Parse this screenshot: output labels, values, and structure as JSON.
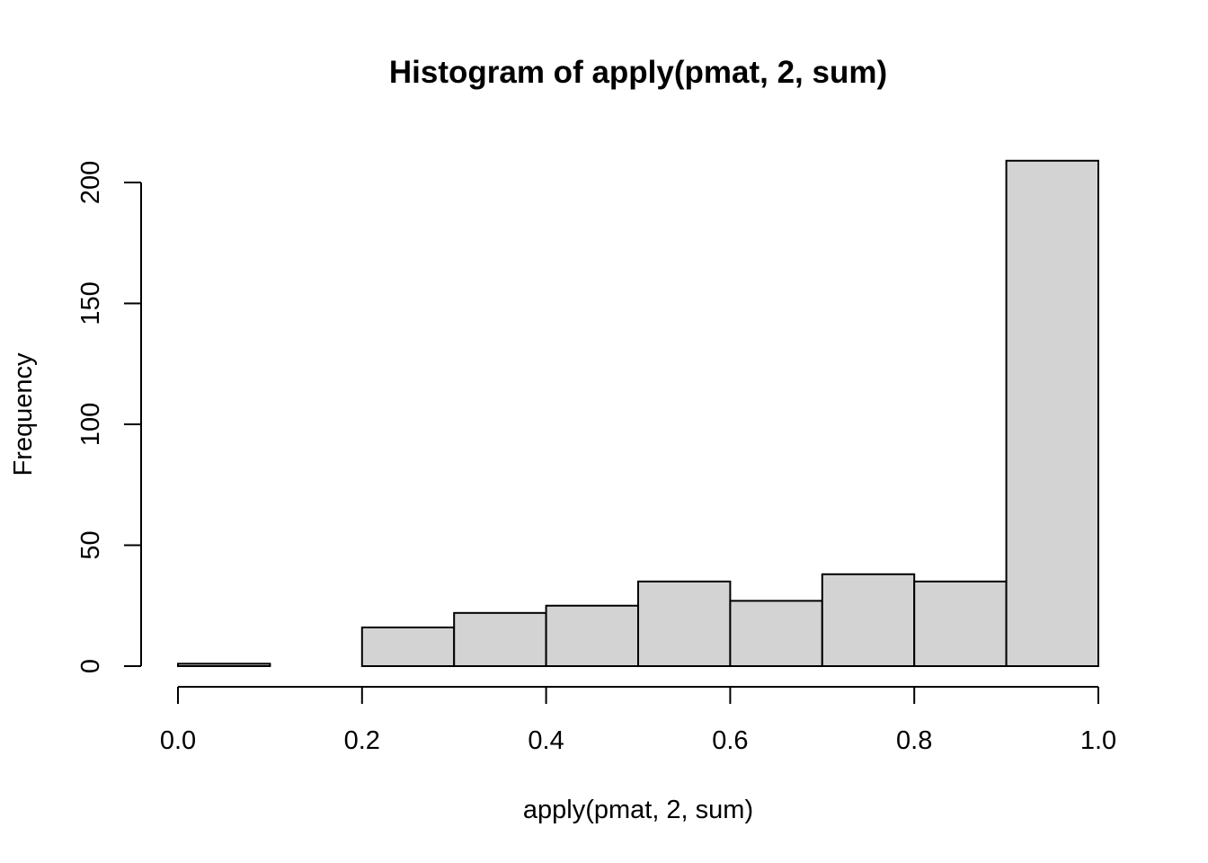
{
  "chart_data": {
    "type": "bar",
    "subtype": "histogram",
    "title": "Histogram of apply(pmat, 2, sum)",
    "xlabel": "apply(pmat, 2, sum)",
    "ylabel": "Frequency",
    "bins": [
      {
        "x0": 0.0,
        "x1": 0.1,
        "count": 1
      },
      {
        "x0": 0.1,
        "x1": 0.2,
        "count": 0
      },
      {
        "x0": 0.2,
        "x1": 0.3,
        "count": 16
      },
      {
        "x0": 0.3,
        "x1": 0.4,
        "count": 22
      },
      {
        "x0": 0.4,
        "x1": 0.5,
        "count": 25
      },
      {
        "x0": 0.5,
        "x1": 0.6,
        "count": 35
      },
      {
        "x0": 0.6,
        "x1": 0.7,
        "count": 27
      },
      {
        "x0": 0.7,
        "x1": 0.8,
        "count": 38
      },
      {
        "x0": 0.8,
        "x1": 0.9,
        "count": 35
      },
      {
        "x0": 0.9,
        "x1": 1.0,
        "count": 209
      }
    ],
    "xlim": [
      0.0,
      1.0
    ],
    "ylim": [
      0,
      200
    ],
    "x_ticks": [
      "0.0",
      "0.2",
      "0.4",
      "0.6",
      "0.8",
      "1.0"
    ],
    "y_ticks": [
      "0",
      "50",
      "100",
      "150",
      "200"
    ],
    "bar_fill": "#d3d3d3",
    "bar_stroke": "#000000",
    "grid": false,
    "legend": "none"
  }
}
